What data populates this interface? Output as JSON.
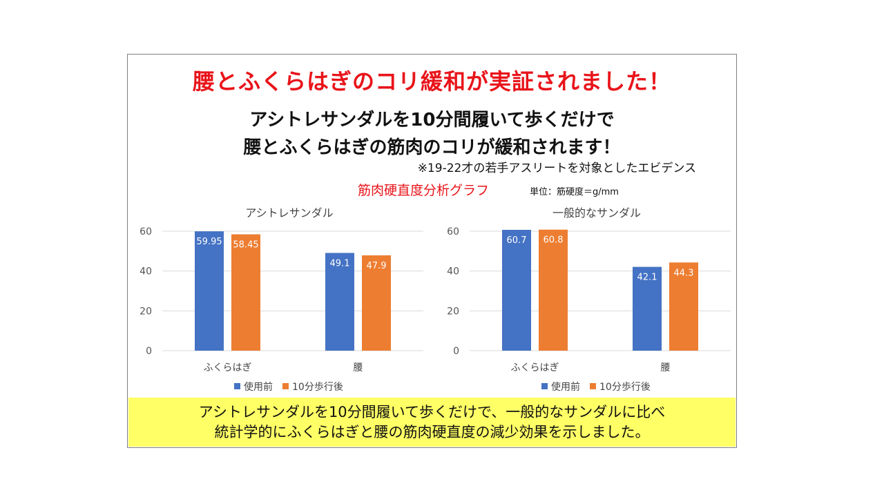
{
  "headline": "腰とふくらはぎのコリ緩和が実証されました！",
  "subtitle_line1": "アシトレサンダルを10分間履いて歩くだけで",
  "subtitle_line2": "腰とふくらはぎの筋肉のコリが緩和されます！",
  "note": "※19-22才の若手アスリートを対象としたエビデンス",
  "graph_title": "筋肉硬直度分析グラフ",
  "unit": "単位：筋硬度＝g/mm",
  "colors": {
    "series1": "#4472c4",
    "series2": "#ed7d31",
    "headline": "#e8141a",
    "highlight": "#ffff66"
  },
  "chart_data": [
    {
      "type": "bar",
      "title": "アシトレサンダル",
      "categories": [
        "ふくらはぎ",
        "腰"
      ],
      "series": [
        {
          "name": "使用前",
          "values": [
            59.95,
            49.1
          ]
        },
        {
          "name": "10分歩行後",
          "values": [
            58.45,
            47.9
          ]
        }
      ],
      "ylim": [
        0,
        60
      ],
      "yticks": [
        0,
        20,
        40,
        60
      ],
      "legend": "bottom"
    },
    {
      "type": "bar",
      "title": "一般的なサンダル",
      "categories": [
        "ふくらはぎ",
        "腰"
      ],
      "series": [
        {
          "name": "使用前",
          "values": [
            60.7,
            42.1
          ]
        },
        {
          "name": "10分歩行後",
          "values": [
            60.8,
            44.3
          ]
        }
      ],
      "ylim": [
        0,
        60
      ],
      "yticks": [
        0,
        20,
        40,
        60
      ],
      "legend": "bottom"
    }
  ],
  "bottom_line1": "アシトレサンダルを10分間履いて歩くだけで、一般的なサンダルに比べ",
  "bottom_line2": "統計学的にふくらはぎと腰の筋肉硬直度の減少効果を示しました。"
}
